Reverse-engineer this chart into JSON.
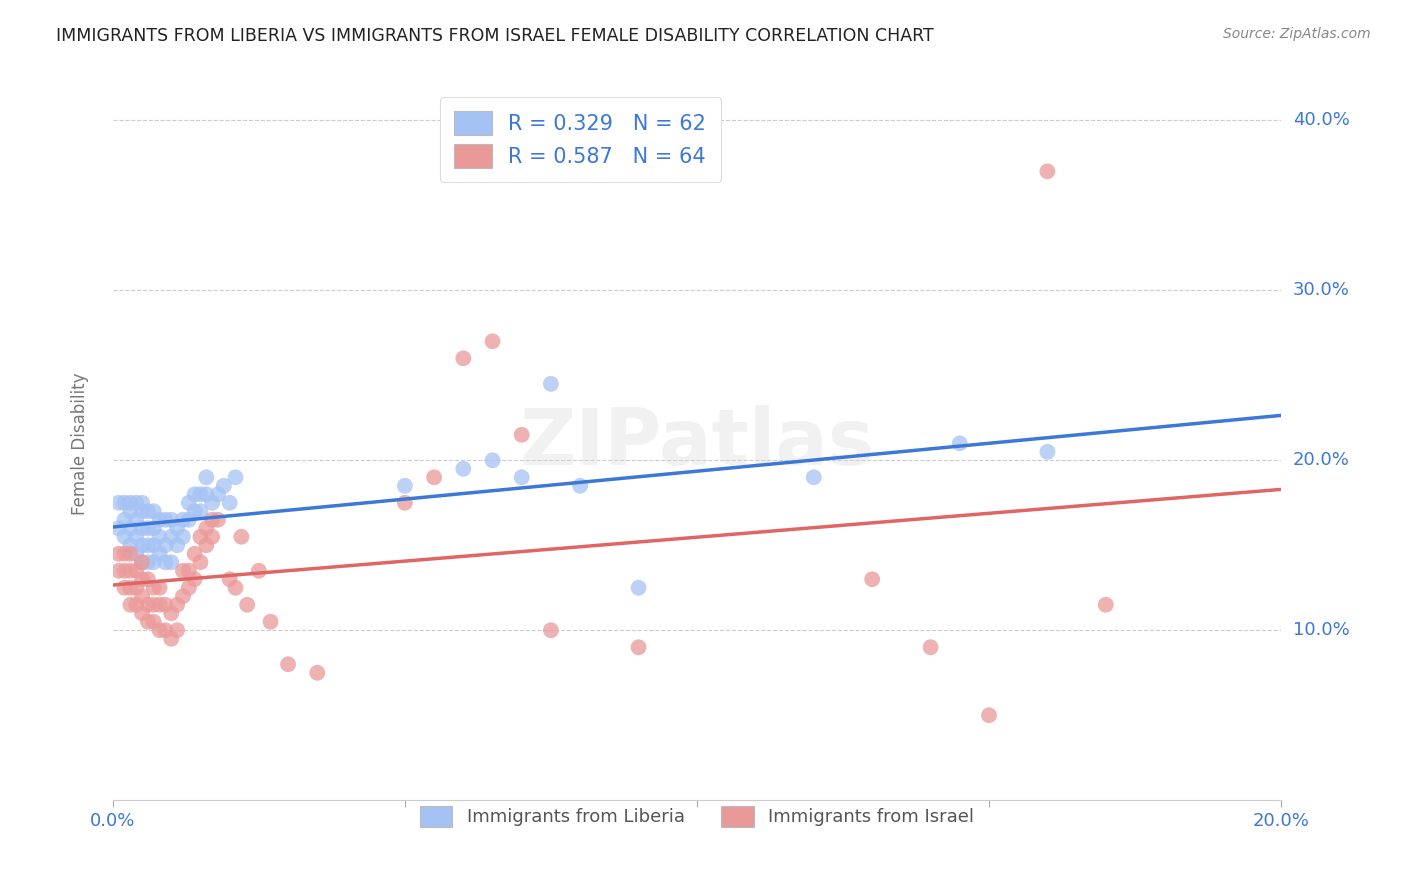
{
  "title": "IMMIGRANTS FROM LIBERIA VS IMMIGRANTS FROM ISRAEL FEMALE DISABILITY CORRELATION CHART",
  "source": "Source: ZipAtlas.com",
  "ylabel_label": "Female Disability",
  "xlim": [
    0.0,
    0.2
  ],
  "ylim": [
    0.0,
    0.42
  ],
  "xticks": [
    0.0,
    0.05,
    0.1,
    0.15,
    0.2
  ],
  "yticks": [
    0.1,
    0.2,
    0.3,
    0.4
  ],
  "xtick_labels": [
    "0.0%",
    "",
    "",
    "",
    "20.0%"
  ],
  "ytick_labels": [
    "10.0%",
    "20.0%",
    "30.0%",
    "40.0%"
  ],
  "legend1_label": "R = 0.329   N = 62",
  "legend2_label": "R = 0.587   N = 64",
  "legend_bottom_label1": "Immigrants from Liberia",
  "legend_bottom_label2": "Immigrants from Israel",
  "blue_scatter_color": "#a4c2f4",
  "pink_scatter_color": "#ea9999",
  "blue_line_color": "#3c78d8",
  "pink_line_color": "#e06666",
  "text_color": "#3c78d8",
  "background_color": "#ffffff",
  "watermark": "ZIPatlas",
  "liberia_x": [
    0.001,
    0.001,
    0.002,
    0.002,
    0.002,
    0.003,
    0.003,
    0.003,
    0.003,
    0.004,
    0.004,
    0.004,
    0.004,
    0.005,
    0.005,
    0.005,
    0.005,
    0.005,
    0.006,
    0.006,
    0.006,
    0.006,
    0.007,
    0.007,
    0.007,
    0.007,
    0.008,
    0.008,
    0.008,
    0.009,
    0.009,
    0.009,
    0.01,
    0.01,
    0.01,
    0.011,
    0.011,
    0.012,
    0.012,
    0.013,
    0.013,
    0.014,
    0.014,
    0.015,
    0.015,
    0.016,
    0.016,
    0.017,
    0.018,
    0.019,
    0.02,
    0.021,
    0.05,
    0.06,
    0.065,
    0.07,
    0.075,
    0.08,
    0.09,
    0.12,
    0.145,
    0.16
  ],
  "liberia_y": [
    0.16,
    0.175,
    0.155,
    0.165,
    0.175,
    0.15,
    0.16,
    0.17,
    0.175,
    0.145,
    0.155,
    0.165,
    0.175,
    0.14,
    0.15,
    0.16,
    0.17,
    0.175,
    0.14,
    0.15,
    0.16,
    0.17,
    0.14,
    0.15,
    0.16,
    0.17,
    0.145,
    0.155,
    0.165,
    0.14,
    0.15,
    0.165,
    0.14,
    0.155,
    0.165,
    0.15,
    0.16,
    0.155,
    0.165,
    0.165,
    0.175,
    0.17,
    0.18,
    0.17,
    0.18,
    0.18,
    0.19,
    0.175,
    0.18,
    0.185,
    0.175,
    0.19,
    0.185,
    0.195,
    0.2,
    0.19,
    0.245,
    0.185,
    0.125,
    0.19,
    0.21,
    0.205
  ],
  "israel_x": [
    0.001,
    0.001,
    0.002,
    0.002,
    0.002,
    0.003,
    0.003,
    0.003,
    0.003,
    0.004,
    0.004,
    0.004,
    0.005,
    0.005,
    0.005,
    0.005,
    0.006,
    0.006,
    0.006,
    0.007,
    0.007,
    0.007,
    0.008,
    0.008,
    0.008,
    0.009,
    0.009,
    0.01,
    0.01,
    0.011,
    0.011,
    0.012,
    0.012,
    0.013,
    0.013,
    0.014,
    0.014,
    0.015,
    0.015,
    0.016,
    0.016,
    0.017,
    0.017,
    0.018,
    0.02,
    0.021,
    0.022,
    0.023,
    0.025,
    0.027,
    0.03,
    0.035,
    0.05,
    0.055,
    0.06,
    0.065,
    0.07,
    0.075,
    0.09,
    0.13,
    0.14,
    0.15,
    0.16,
    0.17
  ],
  "israel_y": [
    0.135,
    0.145,
    0.125,
    0.135,
    0.145,
    0.115,
    0.125,
    0.135,
    0.145,
    0.115,
    0.125,
    0.135,
    0.11,
    0.12,
    0.13,
    0.14,
    0.105,
    0.115,
    0.13,
    0.105,
    0.115,
    0.125,
    0.1,
    0.115,
    0.125,
    0.1,
    0.115,
    0.095,
    0.11,
    0.1,
    0.115,
    0.12,
    0.135,
    0.125,
    0.135,
    0.13,
    0.145,
    0.14,
    0.155,
    0.15,
    0.16,
    0.155,
    0.165,
    0.165,
    0.13,
    0.125,
    0.155,
    0.115,
    0.135,
    0.105,
    0.08,
    0.075,
    0.175,
    0.19,
    0.26,
    0.27,
    0.215,
    0.1,
    0.09,
    0.13,
    0.09,
    0.05,
    0.37,
    0.115
  ]
}
